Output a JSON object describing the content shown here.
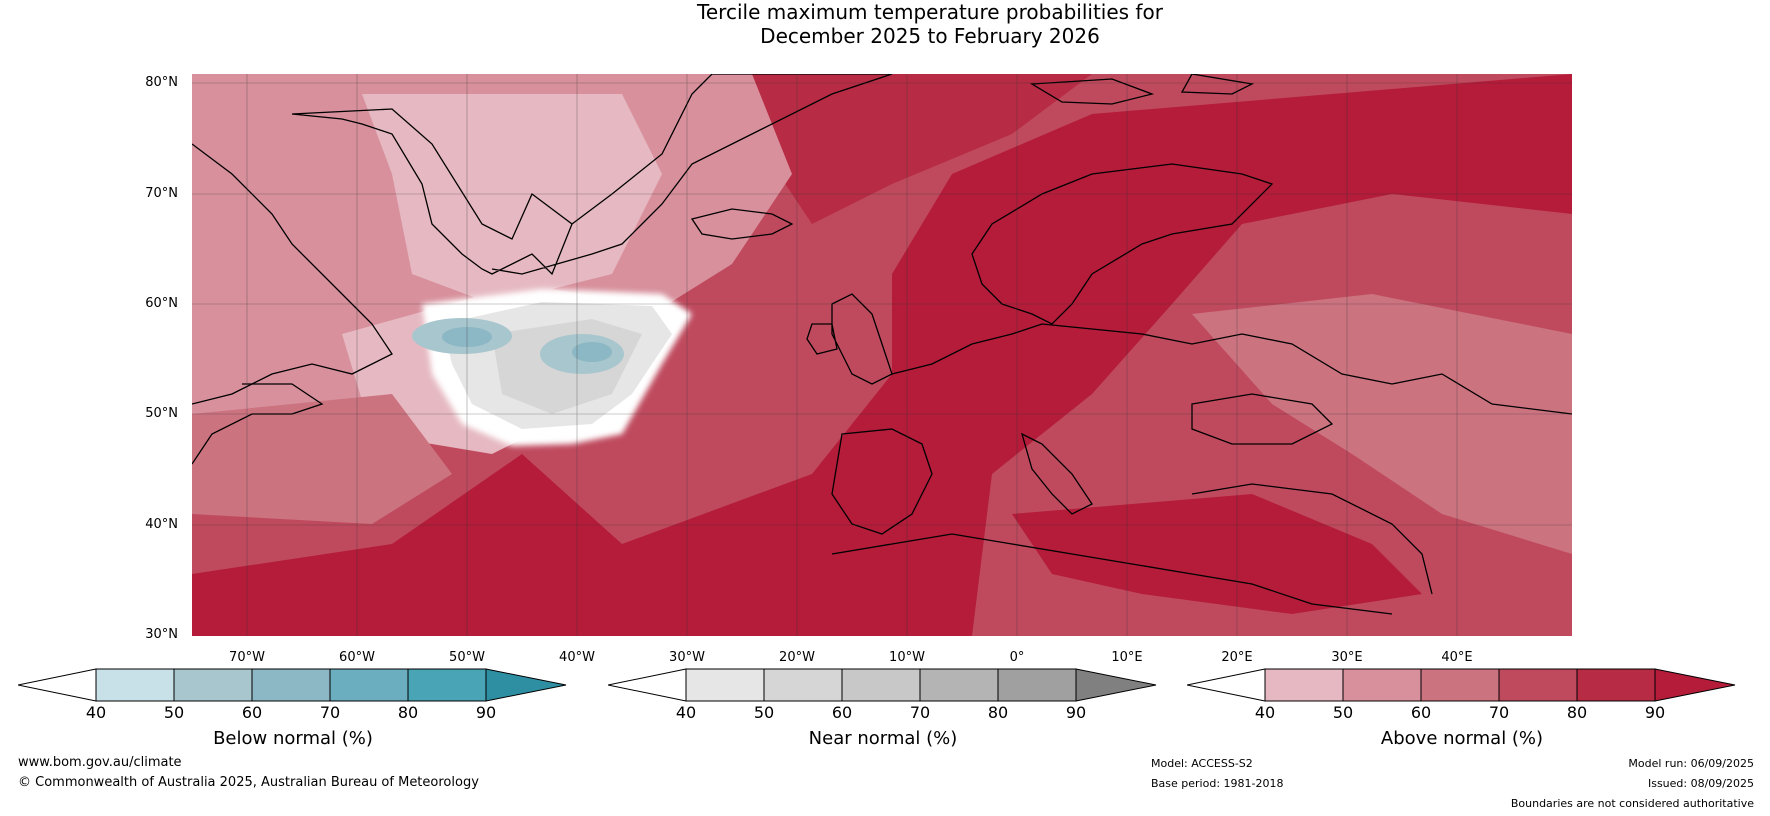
{
  "title_line1": "Tercile maximum temperature probabilities for",
  "title_line2": "December 2025 to February 2026",
  "latitudes": [
    "80°N",
    "70°N",
    "60°N",
    "50°N",
    "40°N",
    "30°N"
  ],
  "longitudes": [
    "70°W",
    "60°W",
    "50°W",
    "40°W",
    "30°W",
    "20°W",
    "10°W",
    "0°",
    "10°E",
    "20°E",
    "30°E",
    "40°E"
  ],
  "colorbars": [
    {
      "label": "Below normal (%)",
      "ticks": [
        "40",
        "50",
        "60",
        "70",
        "80",
        "90"
      ],
      "colors": [
        "#ffffff",
        "#c8e1e8",
        "#a7c6cd",
        "#8cb7c5",
        "#6baebf",
        "#49a5b5",
        "#2e8fa3"
      ]
    },
    {
      "label": "Near normal (%)",
      "ticks": [
        "40",
        "50",
        "60",
        "70",
        "80",
        "90"
      ],
      "colors": [
        "#ffffff",
        "#e6e6e6",
        "#d6d6d6",
        "#c8c8c8",
        "#b4b4b4",
        "#a0a0a0",
        "#808080"
      ]
    },
    {
      "label": "Above normal (%)",
      "ticks": [
        "40",
        "50",
        "60",
        "70",
        "80",
        "90"
      ],
      "colors": [
        "#ffffff",
        "#e6b9c2",
        "#d7909c",
        "#cc7380",
        "#bf4a5e",
        "#b72c44",
        "#b41c3a"
      ]
    }
  ],
  "footer": {
    "website": "www.bom.gov.au/climate",
    "copyright": "© Commonwealth of Australia 2025, Australian Bureau of Meteorology",
    "model": "Model: ACCESS-S2",
    "base_period": "Base period: 1981-2018",
    "model_run": "Model run: 06/09/2025",
    "issued": "Issued: 08/09/2025",
    "disclaimer": "Boundaries are not considered authoritative"
  }
}
